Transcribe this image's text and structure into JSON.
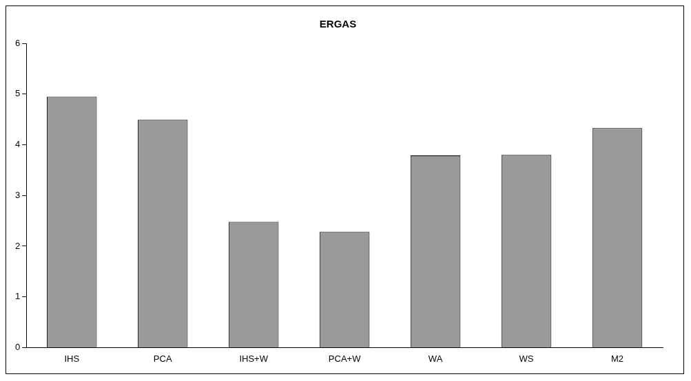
{
  "chart_data": {
    "type": "bar",
    "title": "ERGAS",
    "categories": [
      "IHS",
      "PCA",
      "IHS+W",
      "PCA+W",
      "WA",
      "WS",
      "M2"
    ],
    "values": [
      4.95,
      4.49,
      2.48,
      2.28,
      3.79,
      3.8,
      4.33
    ],
    "color": "#9a9a9a",
    "ylim": [
      0,
      6
    ],
    "yticks": [
      0,
      1,
      2,
      3,
      4,
      5,
      6
    ],
    "grid": false,
    "legend": false
  }
}
